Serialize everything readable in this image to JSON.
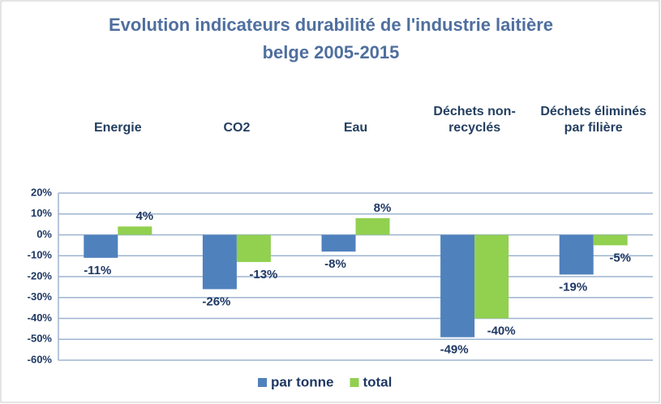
{
  "chart_data": {
    "type": "bar",
    "title": [
      "Evolution indicateurs durabilité de l'industrie laitière",
      "belge 2005-2015"
    ],
    "categories": [
      "Energie",
      "CO2",
      "Eau",
      "Déchets non-recyclés",
      "Déchets éliminés par filière"
    ],
    "series": [
      {
        "name": "par tonne",
        "color": "#4f81bd",
        "values": [
          -11,
          -26,
          -8,
          -49,
          -19
        ],
        "value_labels": [
          "-11%",
          "-26%",
          "-8%",
          "-49%",
          "-19%"
        ]
      },
      {
        "name": "total",
        "color": "#92d050",
        "values": [
          4,
          -13,
          8,
          -40,
          -5
        ],
        "value_labels": [
          "4%",
          "-13%",
          "8%",
          "-40%",
          "-5%"
        ]
      }
    ],
    "ylim": [
      -60,
      20
    ],
    "yticks": [
      {
        "value": -60,
        "label": "-60%"
      },
      {
        "value": -50,
        "label": "-50%"
      },
      {
        "value": -40,
        "label": "-40%"
      },
      {
        "value": -30,
        "label": "-30%"
      },
      {
        "value": -20,
        "label": "-20%"
      },
      {
        "value": -10,
        "label": "-10%"
      },
      {
        "value": 0,
        "label": "0%"
      },
      {
        "value": 10,
        "label": "10%"
      },
      {
        "value": 20,
        "label": "20%"
      }
    ],
    "grid": true,
    "legend": "bottom"
  }
}
